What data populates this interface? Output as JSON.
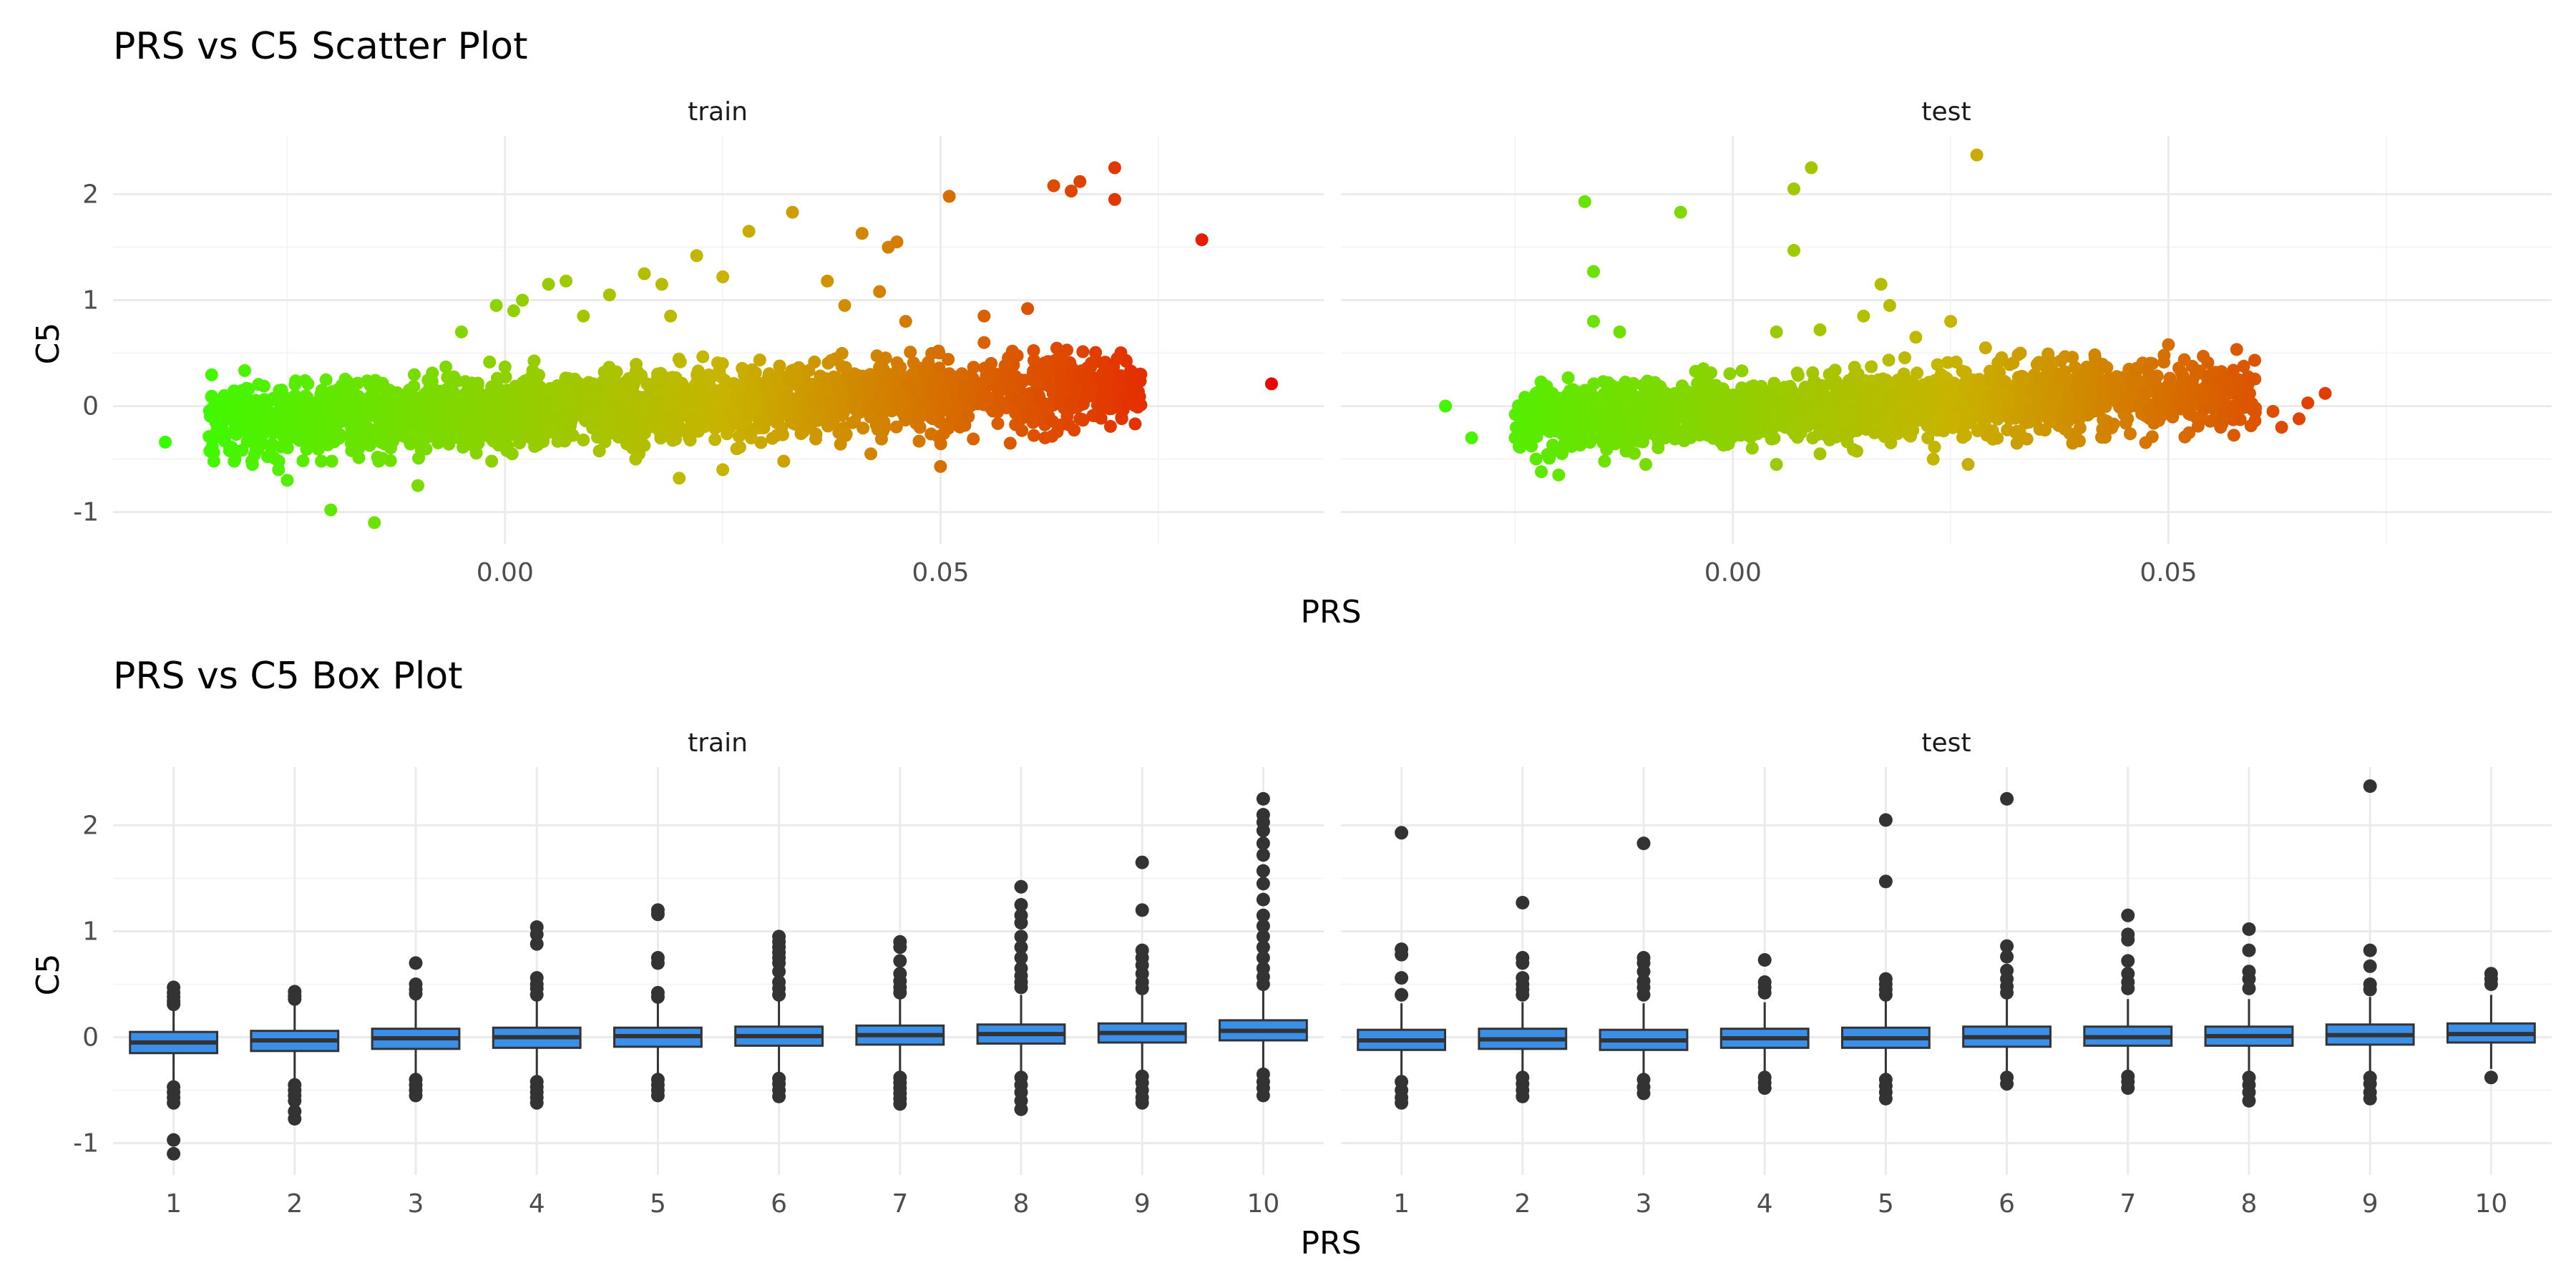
{
  "chart_data": [
    {
      "type": "scatter",
      "title": "PRS vs C5 Scatter Plot",
      "xlabel": "PRS",
      "ylabel": "C5",
      "xlim": [
        -0.045,
        0.094
      ],
      "ylim": [
        -1.3,
        2.55
      ],
      "x_ticks": [
        0.0,
        0.05
      ],
      "x_tick_labels": [
        "0.00",
        "0.05"
      ],
      "y_ticks": [
        -1,
        0,
        1,
        2
      ],
      "y_tick_labels": [
        "-1",
        "0",
        "1",
        "2"
      ],
      "color_scale": {
        "low": "#33ff00",
        "mid": "#c8b400",
        "high": "#ee0000"
      },
      "panels": [
        {
          "name": "train",
          "cloud": {
            "x_min": -0.034,
            "x_max": 0.073,
            "c5_mean": -0.05,
            "c5_sd": 0.16,
            "slope": 3.0
          },
          "points": [
            {
              "x": -0.039,
              "y": -0.34
            },
            {
              "x": -0.033,
              "y": 0.03
            },
            {
              "x": -0.033,
              "y": -0.2
            },
            {
              "x": -0.031,
              "y": -0.5
            },
            {
              "x": -0.029,
              "y": -0.55
            },
            {
              "x": -0.026,
              "y": -0.6
            },
            {
              "x": -0.025,
              "y": -0.7
            },
            {
              "x": -0.02,
              "y": -0.98
            },
            {
              "x": -0.015,
              "y": -1.1
            },
            {
              "x": -0.01,
              "y": -0.75
            },
            {
              "x": -0.005,
              "y": 0.7
            },
            {
              "x": -0.001,
              "y": 0.95
            },
            {
              "x": 0.001,
              "y": 0.9
            },
            {
              "x": 0.002,
              "y": 1.0
            },
            {
              "x": 0.005,
              "y": 1.15
            },
            {
              "x": 0.007,
              "y": 1.18
            },
            {
              "x": 0.009,
              "y": 0.85
            },
            {
              "x": 0.012,
              "y": 1.05
            },
            {
              "x": 0.016,
              "y": 1.25
            },
            {
              "x": 0.018,
              "y": 1.15
            },
            {
              "x": 0.019,
              "y": 0.85
            },
            {
              "x": 0.022,
              "y": 1.42
            },
            {
              "x": 0.025,
              "y": 1.22
            },
            {
              "x": 0.028,
              "y": 1.65
            },
            {
              "x": 0.033,
              "y": 1.83
            },
            {
              "x": 0.037,
              "y": 1.18
            },
            {
              "x": 0.039,
              "y": 0.95
            },
            {
              "x": 0.041,
              "y": 1.63
            },
            {
              "x": 0.043,
              "y": 1.08
            },
            {
              "x": 0.044,
              "y": 1.5
            },
            {
              "x": 0.045,
              "y": 1.55
            },
            {
              "x": 0.046,
              "y": 0.8
            },
            {
              "x": 0.051,
              "y": 1.98
            },
            {
              "x": 0.055,
              "y": 0.85
            },
            {
              "x": 0.055,
              "y": 0.6
            },
            {
              "x": 0.06,
              "y": 0.92
            },
            {
              "x": 0.063,
              "y": 2.08
            },
            {
              "x": 0.065,
              "y": 2.03
            },
            {
              "x": 0.066,
              "y": 2.12
            },
            {
              "x": 0.07,
              "y": 2.25
            },
            {
              "x": 0.07,
              "y": 1.95
            },
            {
              "x": 0.073,
              "y": 0.3
            },
            {
              "x": 0.072,
              "y": 0.18
            },
            {
              "x": 0.067,
              "y": 0.15
            },
            {
              "x": 0.08,
              "y": 1.57
            },
            {
              "x": 0.088,
              "y": 0.21
            },
            {
              "x": 0.05,
              "y": -0.57
            },
            {
              "x": 0.062,
              "y": -0.3
            },
            {
              "x": 0.058,
              "y": -0.35
            },
            {
              "x": 0.025,
              "y": -0.6
            },
            {
              "x": 0.02,
              "y": -0.68
            },
            {
              "x": 0.015,
              "y": -0.5
            },
            {
              "x": 0.032,
              "y": -0.52
            },
            {
              "x": 0.042,
              "y": -0.45
            },
            {
              "x": 0.066,
              "y": -0.12
            },
            {
              "x": 0.069,
              "y": 0.02
            }
          ]
        },
        {
          "name": "test",
          "cloud": {
            "x_min": -0.025,
            "x_max": 0.06,
            "c5_mean": -0.05,
            "c5_sd": 0.15,
            "slope": 3.0
          },
          "points": [
            {
              "x": -0.033,
              "y": 0.0
            },
            {
              "x": -0.03,
              "y": -0.3
            },
            {
              "x": -0.025,
              "y": -0.3
            },
            {
              "x": -0.022,
              "y": -0.62
            },
            {
              "x": -0.02,
              "y": -0.65
            },
            {
              "x": -0.017,
              "y": 1.93
            },
            {
              "x": -0.016,
              "y": 0.8
            },
            {
              "x": -0.016,
              "y": 1.27
            },
            {
              "x": -0.013,
              "y": 0.7
            },
            {
              "x": -0.006,
              "y": 1.83
            },
            {
              "x": -0.01,
              "y": -0.55
            },
            {
              "x": 0.007,
              "y": 2.05
            },
            {
              "x": 0.007,
              "y": 1.47
            },
            {
              "x": 0.009,
              "y": 2.25
            },
            {
              "x": 0.005,
              "y": 0.7
            },
            {
              "x": 0.01,
              "y": 0.72
            },
            {
              "x": 0.017,
              "y": 1.15
            },
            {
              "x": 0.018,
              "y": 0.95
            },
            {
              "x": 0.015,
              "y": 0.85
            },
            {
              "x": 0.021,
              "y": 0.65
            },
            {
              "x": 0.025,
              "y": 0.8
            },
            {
              "x": 0.028,
              "y": 2.37
            },
            {
              "x": 0.023,
              "y": -0.5
            },
            {
              "x": 0.027,
              "y": -0.55
            },
            {
              "x": 0.029,
              "y": 0.55
            },
            {
              "x": 0.033,
              "y": 0.5
            },
            {
              "x": 0.039,
              "y": -0.35
            },
            {
              "x": 0.05,
              "y": 0.58
            },
            {
              "x": 0.054,
              "y": 0.47
            },
            {
              "x": 0.058,
              "y": 0.25
            },
            {
              "x": 0.062,
              "y": -0.05
            },
            {
              "x": 0.063,
              "y": -0.2
            },
            {
              "x": 0.065,
              "y": -0.12
            },
            {
              "x": 0.066,
              "y": 0.03
            },
            {
              "x": 0.068,
              "y": 0.12
            },
            {
              "x": 0.056,
              "y": -0.2
            },
            {
              "x": 0.01,
              "y": -0.45
            },
            {
              "x": 0.005,
              "y": -0.55
            }
          ]
        }
      ]
    },
    {
      "type": "box",
      "title": "PRS vs C5 Box Plot",
      "xlabel": "PRS",
      "ylabel": "C5",
      "ylim": [
        -1.3,
        2.55
      ],
      "y_ticks": [
        -1,
        0,
        1,
        2
      ],
      "y_tick_labels": [
        "-1",
        "0",
        "1",
        "2"
      ],
      "categories": [
        "1",
        "2",
        "3",
        "4",
        "5",
        "6",
        "7",
        "8",
        "9",
        "10"
      ],
      "box_color": "#3a8fe8",
      "panels": [
        {
          "name": "train",
          "boxes": [
            {
              "q1": -0.15,
              "median": -0.05,
              "q3": 0.05,
              "low": -0.45,
              "high": 0.3,
              "outliers": [
                0.47,
                0.42,
                0.38,
                0.34,
                0.31,
                -0.47,
                -0.52,
                -0.57,
                -0.62,
                -0.97,
                -1.1
              ]
            },
            {
              "q1": -0.13,
              "median": -0.03,
              "q3": 0.06,
              "low": -0.42,
              "high": 0.33,
              "outliers": [
                0.43,
                0.39,
                0.36,
                -0.45,
                -0.5,
                -0.55,
                -0.6,
                -0.7,
                -0.77
              ]
            },
            {
              "q1": -0.11,
              "median": -0.01,
              "q3": 0.08,
              "low": -0.38,
              "high": 0.35,
              "outliers": [
                0.7,
                0.5,
                0.45,
                0.41,
                -0.4,
                -0.45,
                -0.5,
                -0.55
              ]
            },
            {
              "q1": -0.1,
              "median": 0.0,
              "q3": 0.09,
              "low": -0.38,
              "high": 0.36,
              "outliers": [
                1.04,
                0.97,
                0.88,
                0.56,
                0.5,
                0.46,
                0.4,
                -0.42,
                -0.47,
                -0.52,
                -0.57,
                -0.62
              ]
            },
            {
              "q1": -0.09,
              "median": 0.01,
              "q3": 0.09,
              "low": -0.37,
              "high": 0.36,
              "outliers": [
                1.2,
                1.16,
                0.75,
                0.7,
                0.42,
                0.38,
                -0.4,
                -0.45,
                -0.5,
                -0.55
              ]
            },
            {
              "q1": -0.08,
              "median": 0.01,
              "q3": 0.1,
              "low": -0.36,
              "high": 0.37,
              "outliers": [
                0.95,
                0.9,
                0.85,
                0.8,
                0.75,
                0.7,
                0.62,
                0.52,
                0.46,
                0.4,
                -0.39,
                -0.44,
                -0.5,
                -0.56
              ]
            },
            {
              "q1": -0.07,
              "median": 0.02,
              "q3": 0.11,
              "low": -0.35,
              "high": 0.38,
              "outliers": [
                0.9,
                0.85,
                0.72,
                0.6,
                0.53,
                0.47,
                0.42,
                -0.38,
                -0.43,
                -0.48,
                -0.53,
                -0.58,
                -0.63
              ]
            },
            {
              "q1": -0.06,
              "median": 0.03,
              "q3": 0.12,
              "low": -0.35,
              "high": 0.4,
              "outliers": [
                1.42,
                1.25,
                1.15,
                1.08,
                0.95,
                0.85,
                0.75,
                0.65,
                0.58,
                0.52,
                0.47,
                -0.38,
                -0.45,
                -0.52,
                -0.6,
                -0.68
              ]
            },
            {
              "q1": -0.05,
              "median": 0.04,
              "q3": 0.13,
              "low": -0.33,
              "high": 0.41,
              "outliers": [
                1.65,
                1.2,
                0.82,
                0.75,
                0.68,
                0.6,
                0.52,
                0.46,
                -0.37,
                -0.43,
                -0.5,
                -0.57,
                -0.62
              ]
            },
            {
              "q1": -0.03,
              "median": 0.06,
              "q3": 0.16,
              "low": -0.32,
              "high": 0.45,
              "outliers": [
                2.25,
                2.1,
                2.03,
                1.95,
                1.83,
                1.72,
                1.57,
                1.45,
                1.3,
                1.15,
                1.05,
                0.95,
                0.85,
                0.75,
                0.65,
                0.57,
                0.5,
                -0.35,
                -0.42,
                -0.48,
                -0.55
              ]
            }
          ]
        },
        {
          "name": "test",
          "boxes": [
            {
              "q1": -0.12,
              "median": -0.03,
              "q3": 0.07,
              "low": -0.38,
              "high": 0.32,
              "outliers": [
                1.93,
                0.83,
                0.78,
                0.56,
                0.4,
                -0.42,
                -0.5,
                -0.57,
                -0.62
              ]
            },
            {
              "q1": -0.11,
              "median": -0.02,
              "q3": 0.08,
              "low": -0.36,
              "high": 0.33,
              "outliers": [
                1.27,
                0.75,
                0.7,
                0.56,
                0.5,
                0.45,
                0.4,
                -0.38,
                -0.44,
                -0.5,
                -0.56
              ]
            },
            {
              "q1": -0.12,
              "median": -0.03,
              "q3": 0.07,
              "low": -0.37,
              "high": 0.32,
              "outliers": [
                1.83,
                0.75,
                0.7,
                0.62,
                0.53,
                0.47,
                0.4,
                -0.4,
                -0.47,
                -0.53
              ]
            },
            {
              "q1": -0.1,
              "median": -0.01,
              "q3": 0.08,
              "low": -0.35,
              "high": 0.33,
              "outliers": [
                0.73,
                0.52,
                0.47,
                0.42,
                -0.38,
                -0.43,
                -0.48
              ]
            },
            {
              "q1": -0.1,
              "median": -0.01,
              "q3": 0.09,
              "low": -0.35,
              "high": 0.35,
              "outliers": [
                2.05,
                1.47,
                0.55,
                0.5,
                0.45,
                0.4,
                -0.4,
                -0.46,
                -0.52,
                -0.58
              ]
            },
            {
              "q1": -0.09,
              "median": 0.0,
              "q3": 0.1,
              "low": -0.34,
              "high": 0.36,
              "outliers": [
                2.25,
                0.86,
                0.76,
                0.63,
                0.55,
                0.48,
                0.42,
                -0.38,
                -0.44
              ]
            },
            {
              "q1": -0.08,
              "median": 0.0,
              "q3": 0.1,
              "low": -0.33,
              "high": 0.36,
              "outliers": [
                1.15,
                0.97,
                0.92,
                0.72,
                0.6,
                0.52,
                0.46,
                -0.37,
                -0.42,
                -0.48
              ]
            },
            {
              "q1": -0.08,
              "median": 0.01,
              "q3": 0.1,
              "low": -0.33,
              "high": 0.36,
              "outliers": [
                1.02,
                0.82,
                0.62,
                0.55,
                0.46,
                -0.38,
                -0.45,
                -0.52,
                -0.6
              ]
            },
            {
              "q1": -0.07,
              "median": 0.02,
              "q3": 0.12,
              "low": -0.32,
              "high": 0.38,
              "outliers": [
                2.37,
                0.82,
                0.67,
                0.5,
                0.45,
                -0.38,
                -0.44,
                -0.52,
                -0.58
              ]
            },
            {
              "q1": -0.05,
              "median": 0.03,
              "q3": 0.13,
              "low": -0.3,
              "high": 0.4,
              "outliers": [
                0.6,
                0.55,
                0.5,
                -0.38
              ]
            }
          ]
        }
      ]
    }
  ]
}
